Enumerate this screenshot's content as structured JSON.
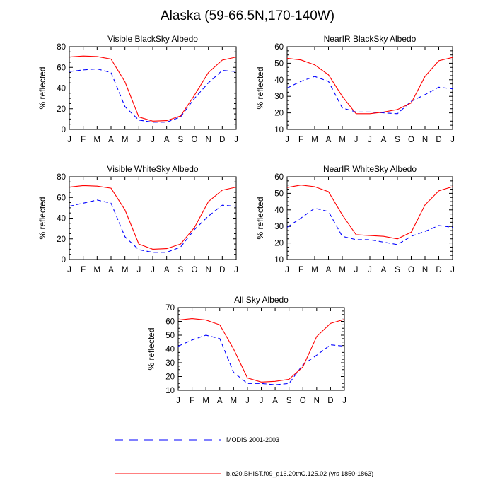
{
  "title": "Alaska (59-66.5N,170-140W)",
  "colors": {
    "model": "#ff0000",
    "modis": "#0000ff",
    "axis": "#000000"
  },
  "legend": [
    {
      "label": "MODIS 2001-2003",
      "color": "#0000ff",
      "style": "dashed"
    },
    {
      "label": "b.e20.BHIST.f09_g16.20thC.125.02 (yrs 1850-1863)",
      "color": "#ff0000",
      "style": "solid"
    }
  ],
  "chart_data": [
    {
      "type": "line",
      "title": "Visible BlackSky Albedo",
      "ylabel": "% reflected",
      "categories": [
        "J",
        "F",
        "M",
        "A",
        "M",
        "J",
        "J",
        "A",
        "S",
        "O",
        "N",
        "D",
        "J"
      ],
      "ylim": [
        0,
        80
      ],
      "yticks": [
        0,
        20,
        40,
        60,
        80
      ],
      "series": [
        {
          "name": "MODIS 2001-2003",
          "values": [
            56,
            57.5,
            58.5,
            55,
            22,
            9,
            7,
            7,
            12,
            30,
            45,
            57,
            56
          ]
        },
        {
          "name": "b.e20.BHIST.f09_g16.20thC.125.02 (yrs 1850-1863)",
          "values": [
            70,
            71,
            70.5,
            68,
            46,
            12,
            8,
            8.5,
            13,
            33,
            55,
            67,
            70
          ]
        }
      ]
    },
    {
      "type": "line",
      "title": "NearIR BlackSky Albedo",
      "ylabel": "% reflected",
      "categories": [
        "J",
        "F",
        "M",
        "A",
        "M",
        "J",
        "J",
        "A",
        "S",
        "O",
        "N",
        "D",
        "J"
      ],
      "ylim": [
        10,
        60
      ],
      "yticks": [
        10,
        20,
        30,
        40,
        50,
        60
      ],
      "series": [
        {
          "name": "MODIS 2001-2003",
          "values": [
            35,
            39,
            42,
            39,
            23,
            20.5,
            20.5,
            20,
            19.5,
            27,
            31,
            35.5,
            34.5
          ]
        },
        {
          "name": "b.e20.BHIST.f09_g16.20thC.125.02 (yrs 1850-1863)",
          "values": [
            53,
            52,
            49,
            43,
            30,
            19.5,
            19.5,
            20.5,
            22,
            26,
            42,
            51.5,
            53.5
          ]
        }
      ]
    },
    {
      "type": "line",
      "title": "Visible WhiteSky Albedo",
      "ylabel": "% reflected",
      "categories": [
        "J",
        "F",
        "M",
        "A",
        "M",
        "J",
        "J",
        "A",
        "S",
        "O",
        "N",
        "D",
        "J"
      ],
      "ylim": [
        0,
        80
      ],
      "yticks": [
        0,
        20,
        40,
        60,
        80
      ],
      "series": [
        {
          "name": "MODIS 2001-2003",
          "values": [
            51.5,
            54.5,
            57.5,
            54.5,
            22,
            9.5,
            7,
            7,
            12,
            29,
            42,
            52.5,
            51.5
          ]
        },
        {
          "name": "b.e20.BHIST.f09_g16.20thC.125.02 (yrs 1850-1863)",
          "values": [
            70,
            71.5,
            71,
            69,
            48,
            15,
            10,
            10.5,
            15,
            31,
            56,
            67,
            70
          ]
        }
      ]
    },
    {
      "type": "line",
      "title": "NearIR WhiteSky Albedo",
      "ylabel": "% reflected",
      "categories": [
        "J",
        "F",
        "M",
        "A",
        "M",
        "J",
        "J",
        "A",
        "S",
        "O",
        "N",
        "D",
        "J"
      ],
      "ylim": [
        10,
        60
      ],
      "yticks": [
        10,
        20,
        30,
        40,
        50,
        60
      ],
      "series": [
        {
          "name": "MODIS 2001-2003",
          "values": [
            29.5,
            35,
            41,
            39,
            24,
            22,
            22,
            20.5,
            19,
            24,
            27,
            30.5,
            29.5
          ]
        },
        {
          "name": "b.e20.BHIST.f09_g16.20thC.125.02 (yrs 1850-1863)",
          "values": [
            53.5,
            55,
            54,
            51,
            37,
            25,
            24.5,
            24,
            22.5,
            26.5,
            43,
            51.5,
            54
          ]
        }
      ]
    },
    {
      "type": "line",
      "title": "All Sky Albedo",
      "ylabel": "% reflected",
      "categories": [
        "J",
        "F",
        "M",
        "A",
        "M",
        "J",
        "J",
        "A",
        "S",
        "O",
        "N",
        "D",
        "J"
      ],
      "ylim": [
        10,
        70
      ],
      "yticks": [
        10,
        20,
        30,
        40,
        50,
        60,
        70
      ],
      "series": [
        {
          "name": "MODIS 2001-2003",
          "values": [
            42,
            46.5,
            50,
            47.5,
            23,
            15,
            15,
            14,
            15,
            28.5,
            35.5,
            43,
            42
          ]
        },
        {
          "name": "b.e20.BHIST.f09_g16.20thC.125.02 (yrs 1850-1863)",
          "values": [
            61,
            62,
            61,
            57.5,
            40,
            19,
            16,
            16.5,
            18,
            27,
            49,
            58.5,
            61.5
          ]
        }
      ]
    }
  ]
}
